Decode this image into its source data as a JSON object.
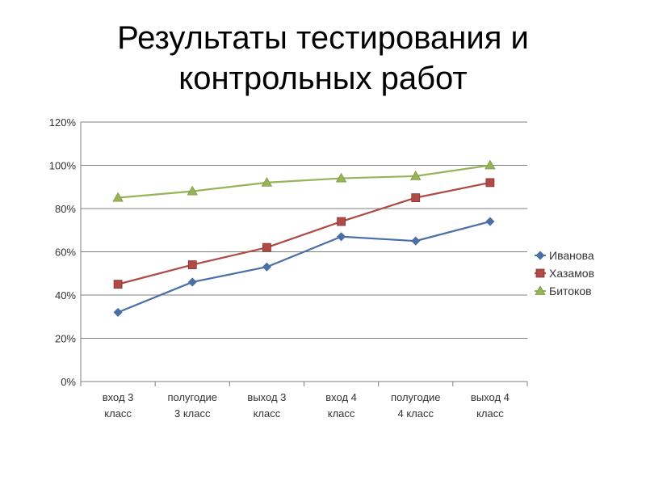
{
  "slide": {
    "title_line1": "Результаты тестирования и",
    "title_line2": "контрольных работ"
  },
  "chart_data": {
    "type": "line",
    "categories": [
      [
        "вход 3",
        "класс"
      ],
      [
        "полугодие",
        "3 класс"
      ],
      [
        "выход 3",
        "класс"
      ],
      [
        "вход  4",
        "класс"
      ],
      [
        "полугодие",
        "4 класс"
      ],
      [
        "выход 4",
        "класс"
      ]
    ],
    "y_ticks": [
      "0%",
      "20%",
      "40%",
      "60%",
      "80%",
      "100%",
      "120%"
    ],
    "ylim": [
      0,
      120
    ],
    "y_step": 20,
    "grid": true,
    "legend_position": "right",
    "series": [
      {
        "name": "Иванова",
        "color": "#4A6FA5",
        "marker": "diamond",
        "values": [
          32,
          46,
          53,
          67,
          65,
          74
        ]
      },
      {
        "name": "Хазамов",
        "color": "#B04A47",
        "marker": "square",
        "values": [
          45,
          54,
          62,
          74,
          85,
          92
        ]
      },
      {
        "name": "Битоков",
        "color": "#98B45A",
        "marker": "triangle",
        "values": [
          85,
          88,
          92,
          94,
          95,
          100
        ]
      }
    ]
  }
}
